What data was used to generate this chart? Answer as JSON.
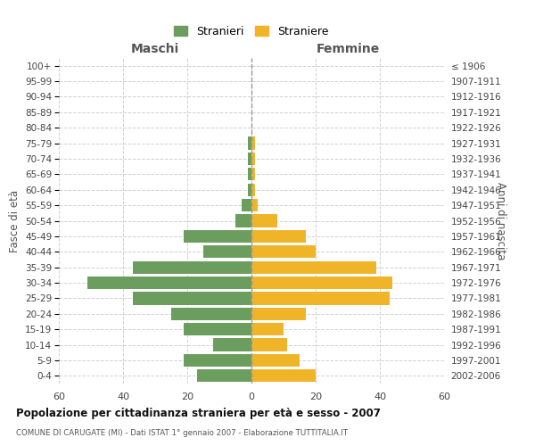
{
  "age_groups": [
    "0-4",
    "5-9",
    "10-14",
    "15-19",
    "20-24",
    "25-29",
    "30-34",
    "35-39",
    "40-44",
    "45-49",
    "50-54",
    "55-59",
    "60-64",
    "65-69",
    "70-74",
    "75-79",
    "80-84",
    "85-89",
    "90-94",
    "95-99",
    "100+"
  ],
  "birth_years": [
    "2002-2006",
    "1997-2001",
    "1992-1996",
    "1987-1991",
    "1982-1986",
    "1977-1981",
    "1972-1976",
    "1967-1971",
    "1962-1966",
    "1957-1961",
    "1952-1956",
    "1947-1951",
    "1942-1946",
    "1937-1941",
    "1932-1936",
    "1927-1931",
    "1922-1926",
    "1917-1921",
    "1912-1916",
    "1907-1911",
    "≤ 1906"
  ],
  "maschi": [
    17,
    21,
    12,
    21,
    25,
    37,
    51,
    37,
    15,
    21,
    5,
    3,
    1,
    1,
    1,
    1,
    0,
    0,
    0,
    0,
    0
  ],
  "femmine": [
    20,
    15,
    11,
    10,
    17,
    43,
    44,
    39,
    20,
    17,
    8,
    2,
    1,
    1,
    1,
    1,
    0,
    0,
    0,
    0,
    0
  ],
  "color_maschi": "#6b9e5e",
  "color_femmine": "#f0b429",
  "title": "Popolazione per cittadinanza straniera per età e sesso - 2007",
  "subtitle": "COMUNE DI CARUGATE (MI) - Dati ISTAT 1° gennaio 2007 - Elaborazione TUTTITALIA.IT",
  "xlabel_maschi": "Maschi",
  "xlabel_femmine": "Femmine",
  "ylabel": "Fasce di età",
  "ylabel_right": "Anni di nascita",
  "legend_maschi": "Stranieri",
  "legend_femmine": "Straniere",
  "xlim": 60,
  "background_color": "#ffffff",
  "grid_color": "#cccccc"
}
